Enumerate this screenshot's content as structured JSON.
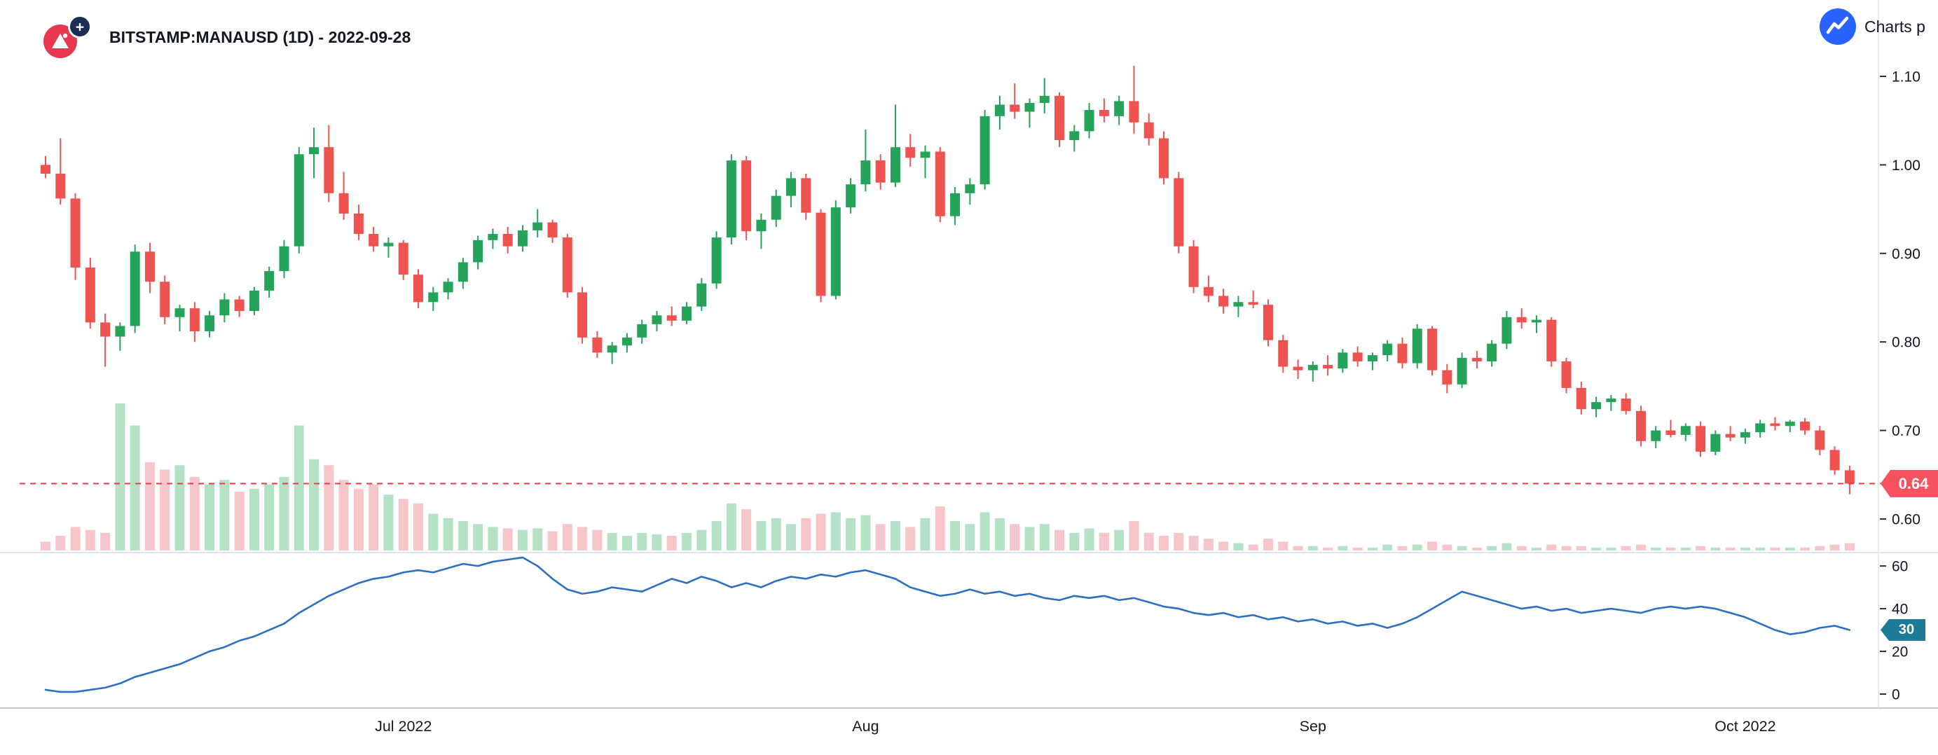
{
  "header": {
    "title": "BITSTAMP:MANAUSD (1D) - 2022-09-28",
    "logo_plus": "+"
  },
  "powered_by": {
    "label": "Charts p"
  },
  "price_label": {
    "text": "0.64"
  },
  "rsi_label": {
    "text": "30"
  },
  "colors": {
    "up": "#26a35a",
    "down": "#ef5350",
    "vol_up": "#b5e2c6",
    "vol_down": "#f6c6ca",
    "rsi_line": "#2e6fc2",
    "rsi_badge": "#1d7a99",
    "price_line": "#f23645",
    "price_badge": "#f7525f",
    "axis_text": "#131722",
    "tick_mark": "#2a2e39",
    "separator": "#e0e3eb",
    "axis_line": "#b2b5be",
    "brand_blue": "#2962ff",
    "logo_red": "#e8384f",
    "logo_navy": "#1b2d54"
  },
  "chart_data": {
    "type": "candlestick",
    "title": "BITSTAMP:MANAUSD (1D) - 2022-09-28",
    "symbol": "BITSTAMP:MANAUSD",
    "interval": "1D",
    "snapshot_date": "2022-09-28",
    "panes": [
      "price+volume",
      "rsi"
    ],
    "grid": false,
    "legend_position": "none",
    "y_axis_range": [
      0.575,
      1.13
    ],
    "rsi_axis_range": [
      0,
      66
    ],
    "last_price": 0.64,
    "rsi_last": 30,
    "y_ticks": [
      {
        "label": "1.10",
        "value": 1.1
      },
      {
        "label": "1.00",
        "value": 1.0
      },
      {
        "label": "0.90",
        "value": 0.9
      },
      {
        "label": "0.80",
        "value": 0.8
      },
      {
        "label": "0.70",
        "value": 0.7
      },
      {
        "label": "0.60",
        "value": 0.6
      }
    ],
    "rsi_ticks": [
      {
        "label": "60",
        "value": 60
      },
      {
        "label": "40",
        "value": 40
      },
      {
        "label": "20",
        "value": 20
      },
      {
        "label": "0",
        "value": 0
      }
    ],
    "month_ticks": [
      {
        "label": "Jul 2022",
        "index": 24
      },
      {
        "label": "Aug",
        "index": 55
      },
      {
        "label": "Sep",
        "index": 85
      },
      {
        "label": "Oct 2022",
        "index": 114
      }
    ],
    "candles": [
      [
        1.0,
        1.01,
        0.985,
        0.99,
        6
      ],
      [
        0.99,
        1.03,
        0.955,
        0.962,
        10
      ],
      [
        0.962,
        0.968,
        0.87,
        0.884,
        16
      ],
      [
        0.884,
        0.895,
        0.815,
        0.822,
        14
      ],
      [
        0.822,
        0.832,
        0.772,
        0.806,
        12
      ],
      [
        0.806,
        0.822,
        0.79,
        0.818,
        100
      ],
      [
        0.818,
        0.91,
        0.81,
        0.902,
        85
      ],
      [
        0.902,
        0.912,
        0.855,
        0.868,
        60
      ],
      [
        0.868,
        0.875,
        0.82,
        0.828,
        55
      ],
      [
        0.828,
        0.842,
        0.812,
        0.838,
        58
      ],
      [
        0.838,
        0.845,
        0.8,
        0.812,
        50
      ],
      [
        0.812,
        0.835,
        0.805,
        0.83,
        45
      ],
      [
        0.83,
        0.855,
        0.822,
        0.848,
        48
      ],
      [
        0.848,
        0.852,
        0.828,
        0.835,
        40
      ],
      [
        0.835,
        0.862,
        0.83,
        0.858,
        42
      ],
      [
        0.858,
        0.885,
        0.85,
        0.88,
        45
      ],
      [
        0.88,
        0.915,
        0.872,
        0.908,
        50
      ],
      [
        0.908,
        1.02,
        0.9,
        1.012,
        85
      ],
      [
        1.012,
        1.042,
        0.985,
        1.02,
        62
      ],
      [
        1.02,
        1.045,
        0.958,
        0.968,
        58
      ],
      [
        0.968,
        0.992,
        0.938,
        0.945,
        48
      ],
      [
        0.945,
        0.955,
        0.915,
        0.922,
        42
      ],
      [
        0.922,
        0.93,
        0.902,
        0.908,
        45
      ],
      [
        0.908,
        0.918,
        0.895,
        0.912,
        38
      ],
      [
        0.912,
        0.915,
        0.87,
        0.876,
        35
      ],
      [
        0.876,
        0.882,
        0.838,
        0.845,
        32
      ],
      [
        0.845,
        0.862,
        0.835,
        0.856,
        25
      ],
      [
        0.856,
        0.872,
        0.848,
        0.868,
        22
      ],
      [
        0.868,
        0.895,
        0.86,
        0.89,
        20
      ],
      [
        0.89,
        0.92,
        0.882,
        0.915,
        18
      ],
      [
        0.915,
        0.928,
        0.905,
        0.922,
        16
      ],
      [
        0.922,
        0.93,
        0.9,
        0.908,
        15
      ],
      [
        0.908,
        0.932,
        0.902,
        0.926,
        14
      ],
      [
        0.926,
        0.95,
        0.918,
        0.935,
        15
      ],
      [
        0.935,
        0.938,
        0.912,
        0.918,
        13
      ],
      [
        0.918,
        0.922,
        0.85,
        0.856,
        18
      ],
      [
        0.856,
        0.862,
        0.798,
        0.805,
        16
      ],
      [
        0.805,
        0.812,
        0.782,
        0.788,
        14
      ],
      [
        0.788,
        0.8,
        0.775,
        0.796,
        12
      ],
      [
        0.796,
        0.81,
        0.788,
        0.805,
        10
      ],
      [
        0.805,
        0.825,
        0.798,
        0.82,
        12
      ],
      [
        0.82,
        0.835,
        0.812,
        0.83,
        11
      ],
      [
        0.83,
        0.84,
        0.818,
        0.824,
        10
      ],
      [
        0.824,
        0.845,
        0.82,
        0.84,
        12
      ],
      [
        0.84,
        0.872,
        0.835,
        0.866,
        14
      ],
      [
        0.866,
        0.925,
        0.86,
        0.918,
        20
      ],
      [
        0.918,
        1.012,
        0.91,
        1.005,
        32
      ],
      [
        1.005,
        1.01,
        0.915,
        0.925,
        28
      ],
      [
        0.925,
        0.945,
        0.905,
        0.938,
        20
      ],
      [
        0.938,
        0.972,
        0.93,
        0.965,
        22
      ],
      [
        0.965,
        0.992,
        0.952,
        0.985,
        18
      ],
      [
        0.985,
        0.99,
        0.938,
        0.946,
        22
      ],
      [
        0.946,
        0.95,
        0.845,
        0.852,
        25
      ],
      [
        0.852,
        0.96,
        0.848,
        0.952,
        26
      ],
      [
        0.952,
        0.985,
        0.945,
        0.978,
        22
      ],
      [
        0.978,
        1.04,
        0.97,
        1.005,
        24
      ],
      [
        1.005,
        1.012,
        0.972,
        0.98,
        18
      ],
      [
        0.98,
        1.068,
        0.975,
        1.02,
        20
      ],
      [
        1.02,
        1.035,
        0.998,
        1.008,
        16
      ],
      [
        1.008,
        1.022,
        0.985,
        1.015,
        22
      ],
      [
        1.015,
        1.02,
        0.935,
        0.942,
        30
      ],
      [
        0.942,
        0.975,
        0.932,
        0.968,
        20
      ],
      [
        0.968,
        0.985,
        0.955,
        0.978,
        18
      ],
      [
        0.978,
        1.062,
        0.972,
        1.055,
        26
      ],
      [
        1.055,
        1.078,
        1.04,
        1.068,
        22
      ],
      [
        1.068,
        1.092,
        1.052,
        1.06,
        18
      ],
      [
        1.06,
        1.075,
        1.042,
        1.07,
        16
      ],
      [
        1.07,
        1.098,
        1.058,
        1.078,
        18
      ],
      [
        1.078,
        1.082,
        1.02,
        1.028,
        14
      ],
      [
        1.028,
        1.045,
        1.015,
        1.038,
        12
      ],
      [
        1.038,
        1.07,
        1.03,
        1.062,
        15
      ],
      [
        1.062,
        1.075,
        1.048,
        1.055,
        12
      ],
      [
        1.055,
        1.078,
        1.045,
        1.072,
        14
      ],
      [
        1.072,
        1.112,
        1.035,
        1.048,
        20
      ],
      [
        1.048,
        1.058,
        1.022,
        1.03,
        12
      ],
      [
        1.03,
        1.038,
        0.978,
        0.985,
        10
      ],
      [
        0.985,
        0.992,
        0.9,
        0.908,
        12
      ],
      [
        0.908,
        0.915,
        0.855,
        0.862,
        10
      ],
      [
        0.862,
        0.875,
        0.845,
        0.852,
        8
      ],
      [
        0.852,
        0.86,
        0.832,
        0.84,
        6
      ],
      [
        0.84,
        0.852,
        0.828,
        0.845,
        5
      ],
      [
        0.845,
        0.858,
        0.838,
        0.842,
        4
      ],
      [
        0.842,
        0.848,
        0.795,
        0.802,
        8
      ],
      [
        0.802,
        0.808,
        0.765,
        0.772,
        6
      ],
      [
        0.772,
        0.78,
        0.758,
        0.768,
        3
      ],
      [
        0.768,
        0.778,
        0.755,
        0.774,
        3
      ],
      [
        0.774,
        0.785,
        0.762,
        0.77,
        2
      ],
      [
        0.77,
        0.792,
        0.765,
        0.788,
        3
      ],
      [
        0.788,
        0.795,
        0.772,
        0.778,
        2
      ],
      [
        0.778,
        0.788,
        0.768,
        0.785,
        2
      ],
      [
        0.785,
        0.802,
        0.778,
        0.798,
        4
      ],
      [
        0.798,
        0.805,
        0.77,
        0.776,
        3
      ],
      [
        0.776,
        0.82,
        0.77,
        0.815,
        4
      ],
      [
        0.815,
        0.818,
        0.762,
        0.768,
        6
      ],
      [
        0.768,
        0.775,
        0.742,
        0.752,
        4
      ],
      [
        0.752,
        0.788,
        0.748,
        0.782,
        3
      ],
      [
        0.782,
        0.79,
        0.77,
        0.778,
        2
      ],
      [
        0.778,
        0.802,
        0.772,
        0.798,
        3
      ],
      [
        0.798,
        0.835,
        0.792,
        0.828,
        5
      ],
      [
        0.828,
        0.838,
        0.815,
        0.822,
        3
      ],
      [
        0.822,
        0.83,
        0.81,
        0.825,
        2
      ],
      [
        0.825,
        0.828,
        0.772,
        0.778,
        4
      ],
      [
        0.778,
        0.782,
        0.742,
        0.748,
        3
      ],
      [
        0.748,
        0.755,
        0.718,
        0.724,
        3
      ],
      [
        0.724,
        0.738,
        0.715,
        0.732,
        2
      ],
      [
        0.732,
        0.74,
        0.722,
        0.736,
        2
      ],
      [
        0.736,
        0.742,
        0.718,
        0.722,
        3
      ],
      [
        0.722,
        0.728,
        0.682,
        0.688,
        4
      ],
      [
        0.688,
        0.705,
        0.68,
        0.7,
        2
      ],
      [
        0.7,
        0.712,
        0.692,
        0.695,
        2
      ],
      [
        0.695,
        0.708,
        0.688,
        0.705,
        2
      ],
      [
        0.705,
        0.71,
        0.67,
        0.676,
        3
      ],
      [
        0.676,
        0.7,
        0.672,
        0.696,
        2
      ],
      [
        0.696,
        0.705,
        0.688,
        0.692,
        2
      ],
      [
        0.692,
        0.702,
        0.685,
        0.698,
        2
      ],
      [
        0.698,
        0.712,
        0.692,
        0.708,
        2
      ],
      [
        0.708,
        0.715,
        0.7,
        0.705,
        2
      ],
      [
        0.705,
        0.712,
        0.698,
        0.71,
        2
      ],
      [
        0.71,
        0.714,
        0.695,
        0.7,
        2
      ],
      [
        0.7,
        0.705,
        0.672,
        0.678,
        3
      ],
      [
        0.678,
        0.682,
        0.65,
        0.655,
        4
      ],
      [
        0.655,
        0.66,
        0.628,
        0.64,
        5
      ]
    ],
    "rsi": [
      2,
      1,
      1,
      2,
      3,
      5,
      8,
      10,
      12,
      14,
      17,
      20,
      22,
      25,
      27,
      30,
      33,
      38,
      42,
      46,
      49,
      52,
      54,
      55,
      57,
      58,
      57,
      59,
      61,
      60,
      62,
      63,
      64,
      60,
      54,
      49,
      47,
      48,
      50,
      49,
      48,
      51,
      54,
      52,
      55,
      53,
      50,
      52,
      50,
      53,
      55,
      54,
      56,
      55,
      57,
      58,
      56,
      54,
      50,
      48,
      46,
      47,
      49,
      47,
      48,
      46,
      47,
      45,
      44,
      46,
      45,
      46,
      44,
      45,
      43,
      41,
      40,
      38,
      37,
      38,
      36,
      37,
      35,
      36,
      34,
      35,
      33,
      34,
      32,
      33,
      31,
      33,
      36,
      40,
      44,
      48,
      46,
      44,
      42,
      40,
      41,
      39,
      40,
      38,
      39,
      40,
      39,
      38,
      40,
      41,
      40,
      41,
      40,
      38,
      36,
      33,
      30,
      28,
      29,
      31,
      32,
      30
    ]
  }
}
